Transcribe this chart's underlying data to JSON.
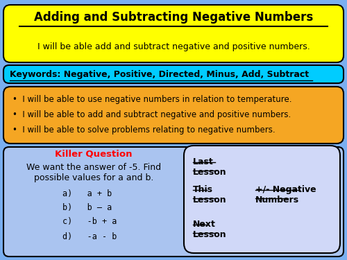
{
  "title": "Adding and Subtracting Negative Numbers",
  "subtitle": "I will be able add and subtract negative and positive numbers.",
  "keywords": "Keywords: Negative, Positive, Directed, Minus, Add, Subtract",
  "objectives": [
    "I will be able to use negative numbers in relation to temperature.",
    "I will be able to add and subtract negative and positive numbers.",
    "I will be able to solve problems relating to negative numbers."
  ],
  "killer_question_title": "Killer Question",
  "killer_question_body": "We want the answer of -5. Find\npossible values for a and b.",
  "killer_question_items": [
    "a)   a + b",
    "b)   b – a",
    "c)   -b + a",
    "d)   -a - b"
  ],
  "last_lesson_label": "Last\nLesson",
  "this_lesson_label": "This\nLesson",
  "this_lesson_value": "+/- Negative\nNumbers",
  "next_lesson_label": "Next\nLesson",
  "bg_color": "#7aaff0",
  "title_bg": "#ffff00",
  "keywords_bg": "#00ccff",
  "objectives_bg": "#f5a623",
  "killer_bg": "#aac4f0",
  "lesson_bg": "#d0d8f8",
  "title_color": "#000000",
  "keywords_color": "#000000",
  "red_color": "#ff0000"
}
